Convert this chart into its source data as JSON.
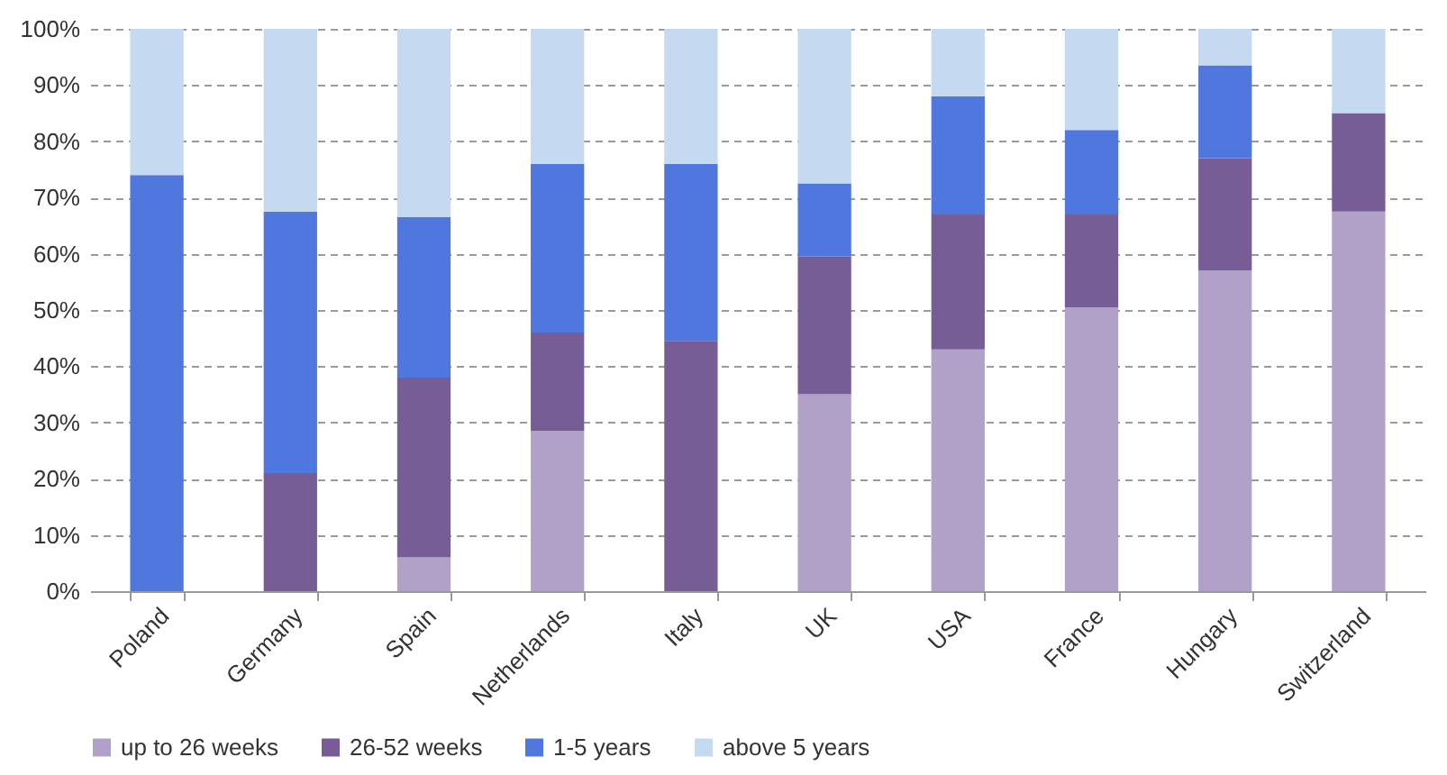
{
  "chart_data": {
    "type": "bar",
    "stacked": true,
    "categories": [
      "Poland",
      "Germany",
      "Spain",
      "Netherlands",
      "Italy",
      "UK",
      "USA",
      "France",
      "Hungary",
      "Switzerland"
    ],
    "series": [
      {
        "name": "up to 26 weeks",
        "color": "#b1a0c7",
        "values": [
          0,
          0,
          6,
          28.5,
          0,
          35,
          43,
          50.5,
          57,
          67.5
        ]
      },
      {
        "name": "26-52 weeks",
        "color": "#765d96",
        "values": [
          0,
          21,
          32,
          17.5,
          44.5,
          24.5,
          24,
          16.5,
          20,
          17.5
        ]
      },
      {
        "name": "1-5 years",
        "color": "#4f77de",
        "values": [
          74,
          46.5,
          28.5,
          30,
          31.5,
          13,
          21,
          15,
          16.5,
          0
        ]
      },
      {
        "name": "above 5 years",
        "color": "#c5d9f1",
        "values": [
          26,
          32.5,
          33.5,
          24,
          24,
          27.5,
          12,
          18,
          6.5,
          15
        ]
      }
    ],
    "ylim": [
      0,
      100
    ],
    "yticks": [
      {
        "value": 0,
        "label": "0%"
      },
      {
        "value": 10,
        "label": "10%"
      },
      {
        "value": 20,
        "label": "20%"
      },
      {
        "value": 30,
        "label": "30%"
      },
      {
        "value": 40,
        "label": "40%"
      },
      {
        "value": 50,
        "label": "50%"
      },
      {
        "value": 60,
        "label": "60%"
      },
      {
        "value": 70,
        "label": "70%"
      },
      {
        "value": 80,
        "label": "80%"
      },
      {
        "value": 90,
        "label": "90%"
      },
      {
        "value": 100,
        "label": "100%"
      }
    ],
    "grid": "y",
    "legend": "bottom"
  }
}
